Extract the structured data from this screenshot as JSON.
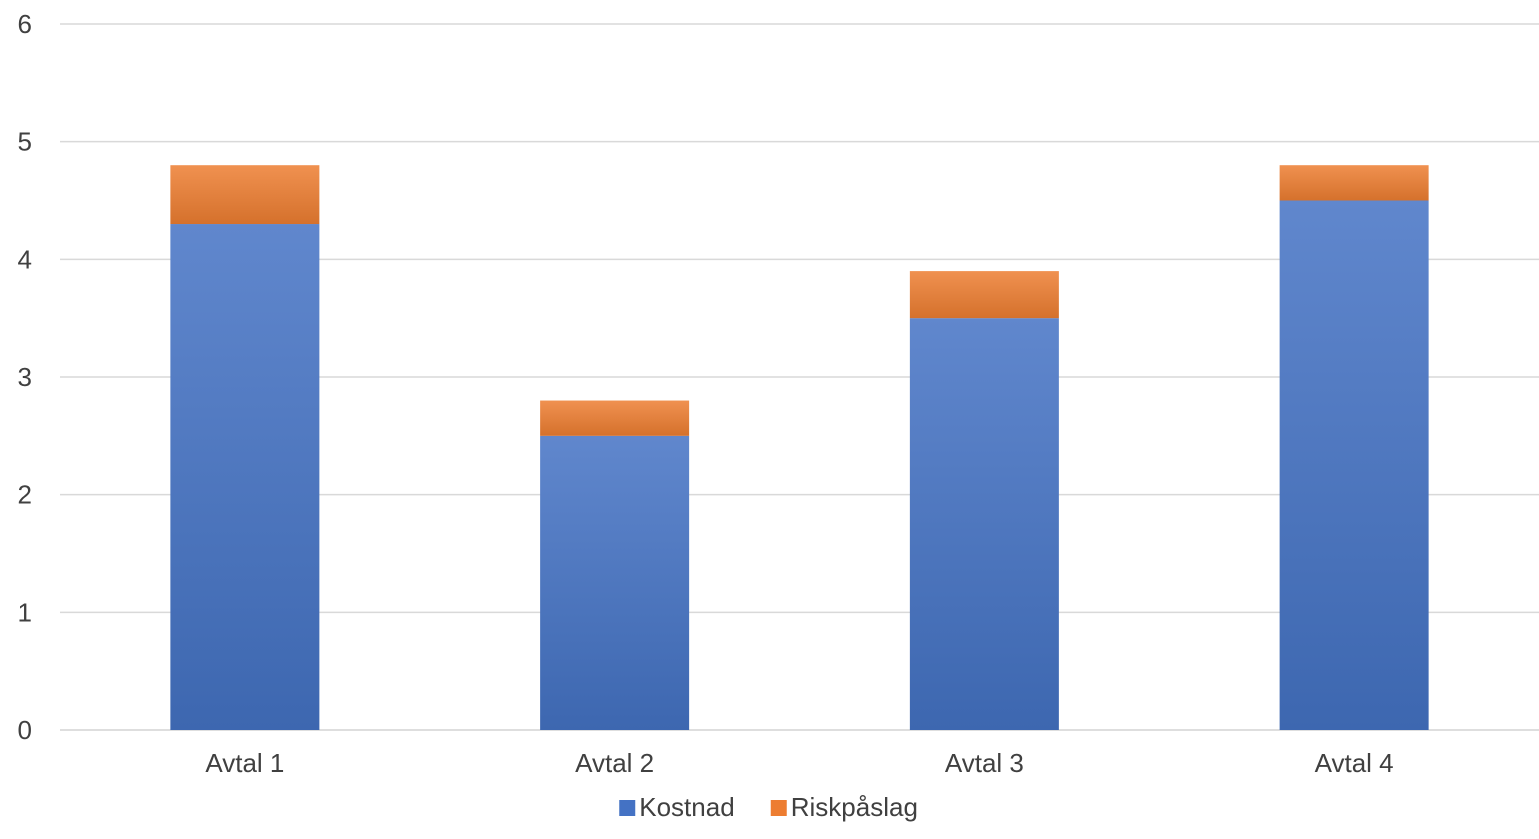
{
  "chart_data": {
    "type": "bar",
    "stacked": true,
    "categories": [
      "Avtal 1",
      "Avtal 2",
      "Avtal 3",
      "Avtal 4"
    ],
    "series": [
      {
        "name": "Kostnad",
        "values": [
          4.3,
          2.5,
          3.5,
          4.5
        ],
        "color": "#4472c4"
      },
      {
        "name": "Riskpåslag",
        "values": [
          0.5,
          0.3,
          0.4,
          0.3
        ],
        "color": "#ed7d31"
      }
    ],
    "title": "",
    "xlabel": "",
    "ylabel": "",
    "ylim": [
      0,
      6
    ],
    "yticks": [
      "0",
      "1",
      "2",
      "3",
      "4",
      "5",
      "6"
    ],
    "grid": true,
    "legend_position": "bottom",
    "colors": {
      "grid": "#d9d9d9",
      "text": "#404040"
    }
  }
}
